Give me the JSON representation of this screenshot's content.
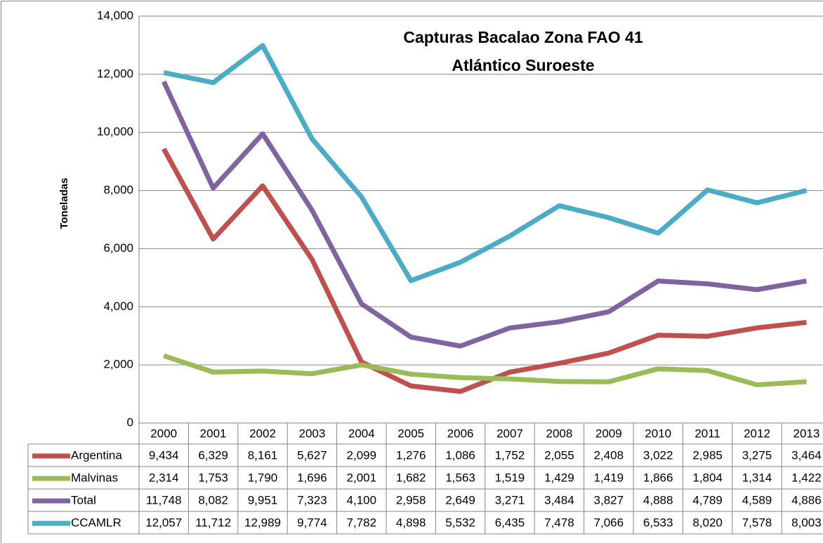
{
  "chart_data": {
    "type": "line",
    "title": [
      "Capturas Bacalao Zona FAO 41",
      "Atlántico Suroeste"
    ],
    "y_label": "Toneladas",
    "categories": [
      "2000",
      "2001",
      "2002",
      "2003",
      "2004",
      "2005",
      "2006",
      "2007",
      "2008",
      "2009",
      "2010",
      "2011",
      "2012",
      "2013"
    ],
    "ylim": [
      0,
      14000
    ],
    "yticks": [
      0,
      {
        "value": 2000,
        "label": "2,000"
      },
      {
        "value": 4000,
        "label": "4,000"
      },
      {
        "value": 6000,
        "label": "6,000"
      },
      {
        "value": 8000,
        "label": "8,000"
      },
      {
        "value": 10000,
        "label": "10,000"
      },
      {
        "value": 12000,
        "label": "12,000"
      },
      {
        "value": 14000,
        "label": "14,000"
      }
    ],
    "grid": true,
    "series": [
      {
        "name": "Argentina",
        "color": "#c0504d",
        "values": [
          9434,
          6329,
          8161,
          5627,
          2099,
          1276,
          1086,
          1752,
          2055,
          2408,
          3022,
          2985,
          3275,
          3464
        ],
        "value_labels": [
          "9,434",
          "6,329",
          "8,161",
          "5,627",
          "2,099",
          "1,276",
          "1,086",
          "1,752",
          "2,055",
          "2,408",
          "3,022",
          "2,985",
          "3,275",
          "3,464"
        ]
      },
      {
        "name": "Malvinas",
        "color": "#9bbb59",
        "values": [
          2314,
          1753,
          1790,
          1696,
          2001,
          1682,
          1563,
          1519,
          1429,
          1419,
          1866,
          1804,
          1314,
          1422
        ],
        "value_labels": [
          "2,314",
          "1,753",
          "1,790",
          "1,696",
          "2,001",
          "1,682",
          "1,563",
          "1,519",
          "1,429",
          "1,419",
          "1,866",
          "1,804",
          "1,314",
          "1,422"
        ]
      },
      {
        "name": "Total",
        "color": "#8064a2",
        "values": [
          11748,
          8082,
          9951,
          7323,
          4100,
          2958,
          2649,
          3271,
          3484,
          3827,
          4888,
          4789,
          4589,
          4886
        ],
        "value_labels": [
          "11,748",
          "8,082",
          "9,951",
          "7,323",
          "4,100",
          "2,958",
          "2,649",
          "3,271",
          "3,484",
          "3,827",
          "4,888",
          "4,789",
          "4,589",
          "4,886"
        ]
      },
      {
        "name": "CCAMLR",
        "color": "#4bacc6",
        "values": [
          12057,
          11712,
          12989,
          9774,
          7782,
          4898,
          5532,
          6435,
          7478,
          7066,
          6533,
          8020,
          7578,
          8003
        ],
        "value_labels": [
          "12,057",
          "11,712",
          "12,989",
          "9,774",
          "7,782",
          "4,898",
          "5,532",
          "6,435",
          "7,478",
          "7,066",
          "6,533",
          "8,020",
          "7,578",
          "8,003"
        ]
      }
    ]
  }
}
